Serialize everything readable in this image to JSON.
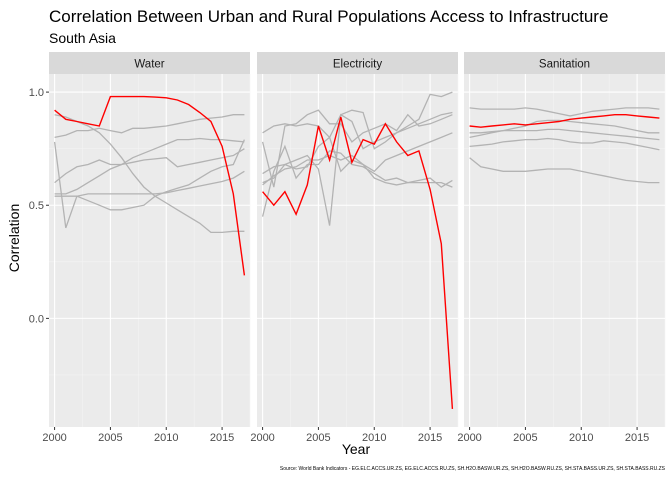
{
  "chart_data": {
    "type": "line",
    "title": "Correlation Between Urban and Rural Populations Access to Infrastructure",
    "subtitle": "South Asia",
    "xlabel": "Year",
    "ylabel": "Correlation",
    "caption": "Source: World Bank Indicators - EG.ELC.ACCS.UR.ZS, EG.ELC.ACCS.RU.ZS, SH.H2O.BASW.UR.ZS, SH.H2O.BASW.RU.ZS, SH.STA.BASS.UR.ZS, SH.STA.BASS.RU.ZS",
    "xlim": [
      1999.5,
      2017.5
    ],
    "ylim": [
      -0.48,
      1.08
    ],
    "x_ticks": [
      2000,
      2005,
      2010,
      2015
    ],
    "y_ticks": [
      0.0,
      0.5,
      1.0
    ],
    "x_tick_labels": [
      "2000",
      "2005",
      "2010",
      "2015"
    ],
    "y_tick_labels": [
      "0.0",
      "0.5",
      "1.0"
    ],
    "grid": true,
    "colors": {
      "highlight": "#ff0000",
      "other": "#b3b3b3",
      "panel_bg": "#ebebeb",
      "strip_bg": "#d9d9d9",
      "grid_major": "#ffffff"
    },
    "x": [
      2000,
      2001,
      2002,
      2003,
      2004,
      2005,
      2006,
      2007,
      2008,
      2009,
      2010,
      2011,
      2012,
      2013,
      2014,
      2015,
      2016,
      2017
    ],
    "facets": [
      {
        "name": "Water",
        "highlight": [
          0.92,
          0.88,
          0.87,
          0.86,
          0.85,
          0.98,
          0.98,
          0.98,
          0.98,
          0.978,
          0.975,
          0.965,
          0.945,
          0.91,
          0.87,
          0.76,
          0.55,
          0.19
        ],
        "others": [
          [
            0.8,
            0.81,
            0.83,
            0.83,
            0.84,
            0.83,
            0.82,
            0.84,
            0.84,
            0.845,
            0.85,
            0.86,
            0.87,
            0.88,
            0.885,
            0.89,
            0.9,
            0.9
          ],
          [
            0.78,
            0.4,
            0.54,
            0.52,
            0.5,
            0.48,
            0.48,
            0.49,
            0.5,
            0.54,
            0.56,
            0.575,
            0.59,
            0.62,
            0.65,
            0.67,
            0.68,
            0.79
          ],
          [
            0.6,
            0.64,
            0.67,
            0.68,
            0.7,
            0.68,
            0.68,
            0.69,
            0.7,
            0.705,
            0.71,
            0.67,
            0.68,
            0.69,
            0.7,
            0.71,
            0.72,
            0.75
          ],
          [
            0.55,
            0.55,
            0.57,
            0.6,
            0.63,
            0.66,
            0.68,
            0.71,
            0.73,
            0.75,
            0.77,
            0.79,
            0.79,
            0.795,
            0.79,
            0.79,
            0.785,
            0.78
          ],
          [
            0.9,
            0.89,
            0.87,
            0.85,
            0.82,
            0.77,
            0.71,
            0.64,
            0.58,
            0.54,
            0.51,
            0.48,
            0.45,
            0.42,
            0.38,
            0.38,
            0.385,
            0.385
          ],
          [
            0.54,
            0.54,
            0.54,
            0.55,
            0.55,
            0.55,
            0.55,
            0.55,
            0.55,
            0.55,
            0.555,
            0.565,
            0.575,
            0.585,
            0.595,
            0.605,
            0.62,
            0.65
          ]
        ]
      },
      {
        "name": "Electricity",
        "highlight": [
          0.56,
          0.5,
          0.56,
          0.46,
          0.59,
          0.85,
          0.7,
          0.89,
          0.69,
          0.79,
          0.77,
          0.86,
          0.78,
          0.72,
          0.74,
          0.57,
          0.33,
          -0.4
        ],
        "others": [
          [
            0.82,
            0.85,
            0.86,
            0.85,
            0.86,
            0.85,
            0.8,
            0.9,
            0.92,
            0.91,
            0.75,
            0.78,
            0.82,
            0.85,
            0.88,
            0.99,
            0.98,
            1.0
          ],
          [
            0.45,
            0.65,
            0.76,
            0.62,
            0.68,
            0.68,
            0.74,
            0.73,
            0.68,
            0.67,
            0.64,
            0.61,
            0.62,
            0.6,
            0.6,
            0.6,
            0.6,
            0.58
          ],
          [
            0.78,
            0.58,
            0.85,
            0.86,
            0.9,
            0.92,
            0.86,
            0.86,
            0.78,
            0.82,
            0.84,
            0.86,
            0.83,
            0.9,
            0.85,
            0.86,
            0.88,
            0.9
          ],
          [
            0.64,
            0.67,
            0.68,
            0.7,
            0.72,
            0.66,
            0.41,
            0.9,
            0.87,
            0.75,
            0.78,
            0.8,
            0.82,
            0.84,
            0.86,
            0.88,
            0.9,
            0.91
          ],
          [
            0.6,
            0.62,
            0.68,
            0.66,
            0.67,
            0.76,
            0.8,
            0.65,
            0.7,
            0.68,
            0.65,
            0.7,
            0.72,
            0.74,
            0.76,
            0.78,
            0.8,
            0.82
          ],
          [
            0.59,
            0.63,
            0.66,
            0.67,
            0.7,
            0.7,
            0.72,
            0.7,
            0.72,
            0.68,
            0.62,
            0.6,
            0.59,
            0.6,
            0.61,
            0.62,
            0.58,
            0.61
          ]
        ]
      },
      {
        "name": "Sanitation",
        "highlight": [
          0.85,
          0.845,
          0.85,
          0.855,
          0.86,
          0.855,
          0.86,
          0.865,
          0.87,
          0.88,
          0.885,
          0.89,
          0.895,
          0.9,
          0.9,
          0.895,
          0.89,
          0.885
        ],
        "others": [
          [
            0.93,
            0.925,
            0.925,
            0.925,
            0.925,
            0.93,
            0.925,
            0.915,
            0.905,
            0.895,
            0.905,
            0.915,
            0.92,
            0.925,
            0.93,
            0.93,
            0.93,
            0.925
          ],
          [
            0.8,
            0.81,
            0.82,
            0.83,
            0.84,
            0.85,
            0.87,
            0.875,
            0.875,
            0.87,
            0.865,
            0.86,
            0.855,
            0.85,
            0.84,
            0.83,
            0.82,
            0.82
          ],
          [
            0.82,
            0.82,
            0.825,
            0.83,
            0.83,
            0.83,
            0.83,
            0.835,
            0.835,
            0.83,
            0.825,
            0.82,
            0.815,
            0.81,
            0.805,
            0.8,
            0.795,
            0.79
          ],
          [
            0.76,
            0.765,
            0.77,
            0.78,
            0.785,
            0.79,
            0.79,
            0.795,
            0.79,
            0.78,
            0.775,
            0.775,
            0.785,
            0.78,
            0.775,
            0.765,
            0.755,
            0.745
          ],
          [
            0.71,
            0.67,
            0.66,
            0.65,
            0.65,
            0.65,
            0.655,
            0.66,
            0.66,
            0.66,
            0.65,
            0.64,
            0.63,
            0.62,
            0.61,
            0.605,
            0.6,
            0.6
          ]
        ]
      }
    ]
  }
}
